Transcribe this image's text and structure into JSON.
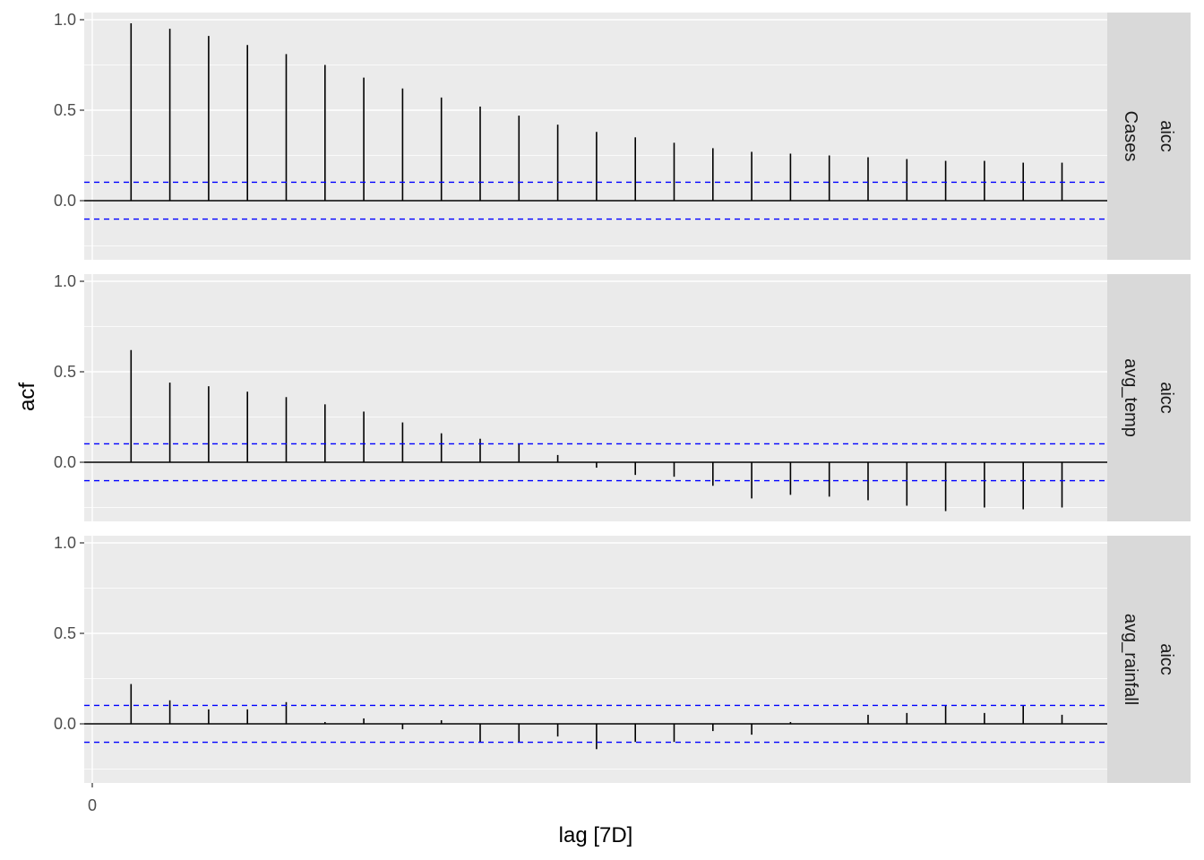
{
  "chart_data": {
    "type": "bar",
    "xlabel": "lag [7D]",
    "ylabel": "acf",
    "model_label": "aicc",
    "x_ticks": [
      0
    ],
    "y_ticks": [
      "0.0",
      "0.5",
      "1.0"
    ],
    "y_tick_values": [
      0.0,
      0.5,
      1.0
    ],
    "xlim": [
      0,
      26
    ],
    "ylim": [
      -0.32,
      1.05
    ],
    "ci": 0.102,
    "grid": true,
    "colors": {
      "panel_bg": "#ebebeb",
      "strip_bg": "#d9d9d9",
      "grid": "#ffffff",
      "spike": "#000000",
      "ci": "#0000ff",
      "zero": "#000000"
    },
    "lags": [
      1,
      2,
      3,
      4,
      5,
      6,
      7,
      8,
      9,
      10,
      11,
      12,
      13,
      14,
      15,
      16,
      17,
      18,
      19,
      20,
      21,
      22,
      23,
      24,
      25
    ],
    "panels": [
      {
        "series": "Cases",
        "values": [
          0.98,
          0.95,
          0.91,
          0.86,
          0.81,
          0.75,
          0.68,
          0.62,
          0.57,
          0.52,
          0.47,
          0.42,
          0.38,
          0.35,
          0.32,
          0.29,
          0.27,
          0.26,
          0.25,
          0.24,
          0.23,
          0.22,
          0.22,
          0.21,
          0.21
        ]
      },
      {
        "series": "avg_temp",
        "values": [
          0.62,
          0.44,
          0.42,
          0.39,
          0.36,
          0.32,
          0.28,
          0.22,
          0.16,
          0.13,
          0.1,
          0.04,
          -0.03,
          -0.07,
          -0.08,
          -0.13,
          -0.2,
          -0.18,
          -0.19,
          -0.21,
          -0.24,
          -0.27,
          -0.25,
          -0.26,
          -0.25
        ]
      },
      {
        "series": "avg_rainfall",
        "values": [
          0.22,
          0.13,
          0.08,
          0.08,
          0.12,
          0.01,
          0.03,
          -0.03,
          0.02,
          -0.1,
          -0.1,
          -0.07,
          -0.14,
          -0.1,
          -0.1,
          -0.04,
          -0.06,
          0.01,
          0.0,
          0.05,
          0.06,
          0.1,
          0.06,
          0.1,
          0.05
        ]
      }
    ]
  }
}
